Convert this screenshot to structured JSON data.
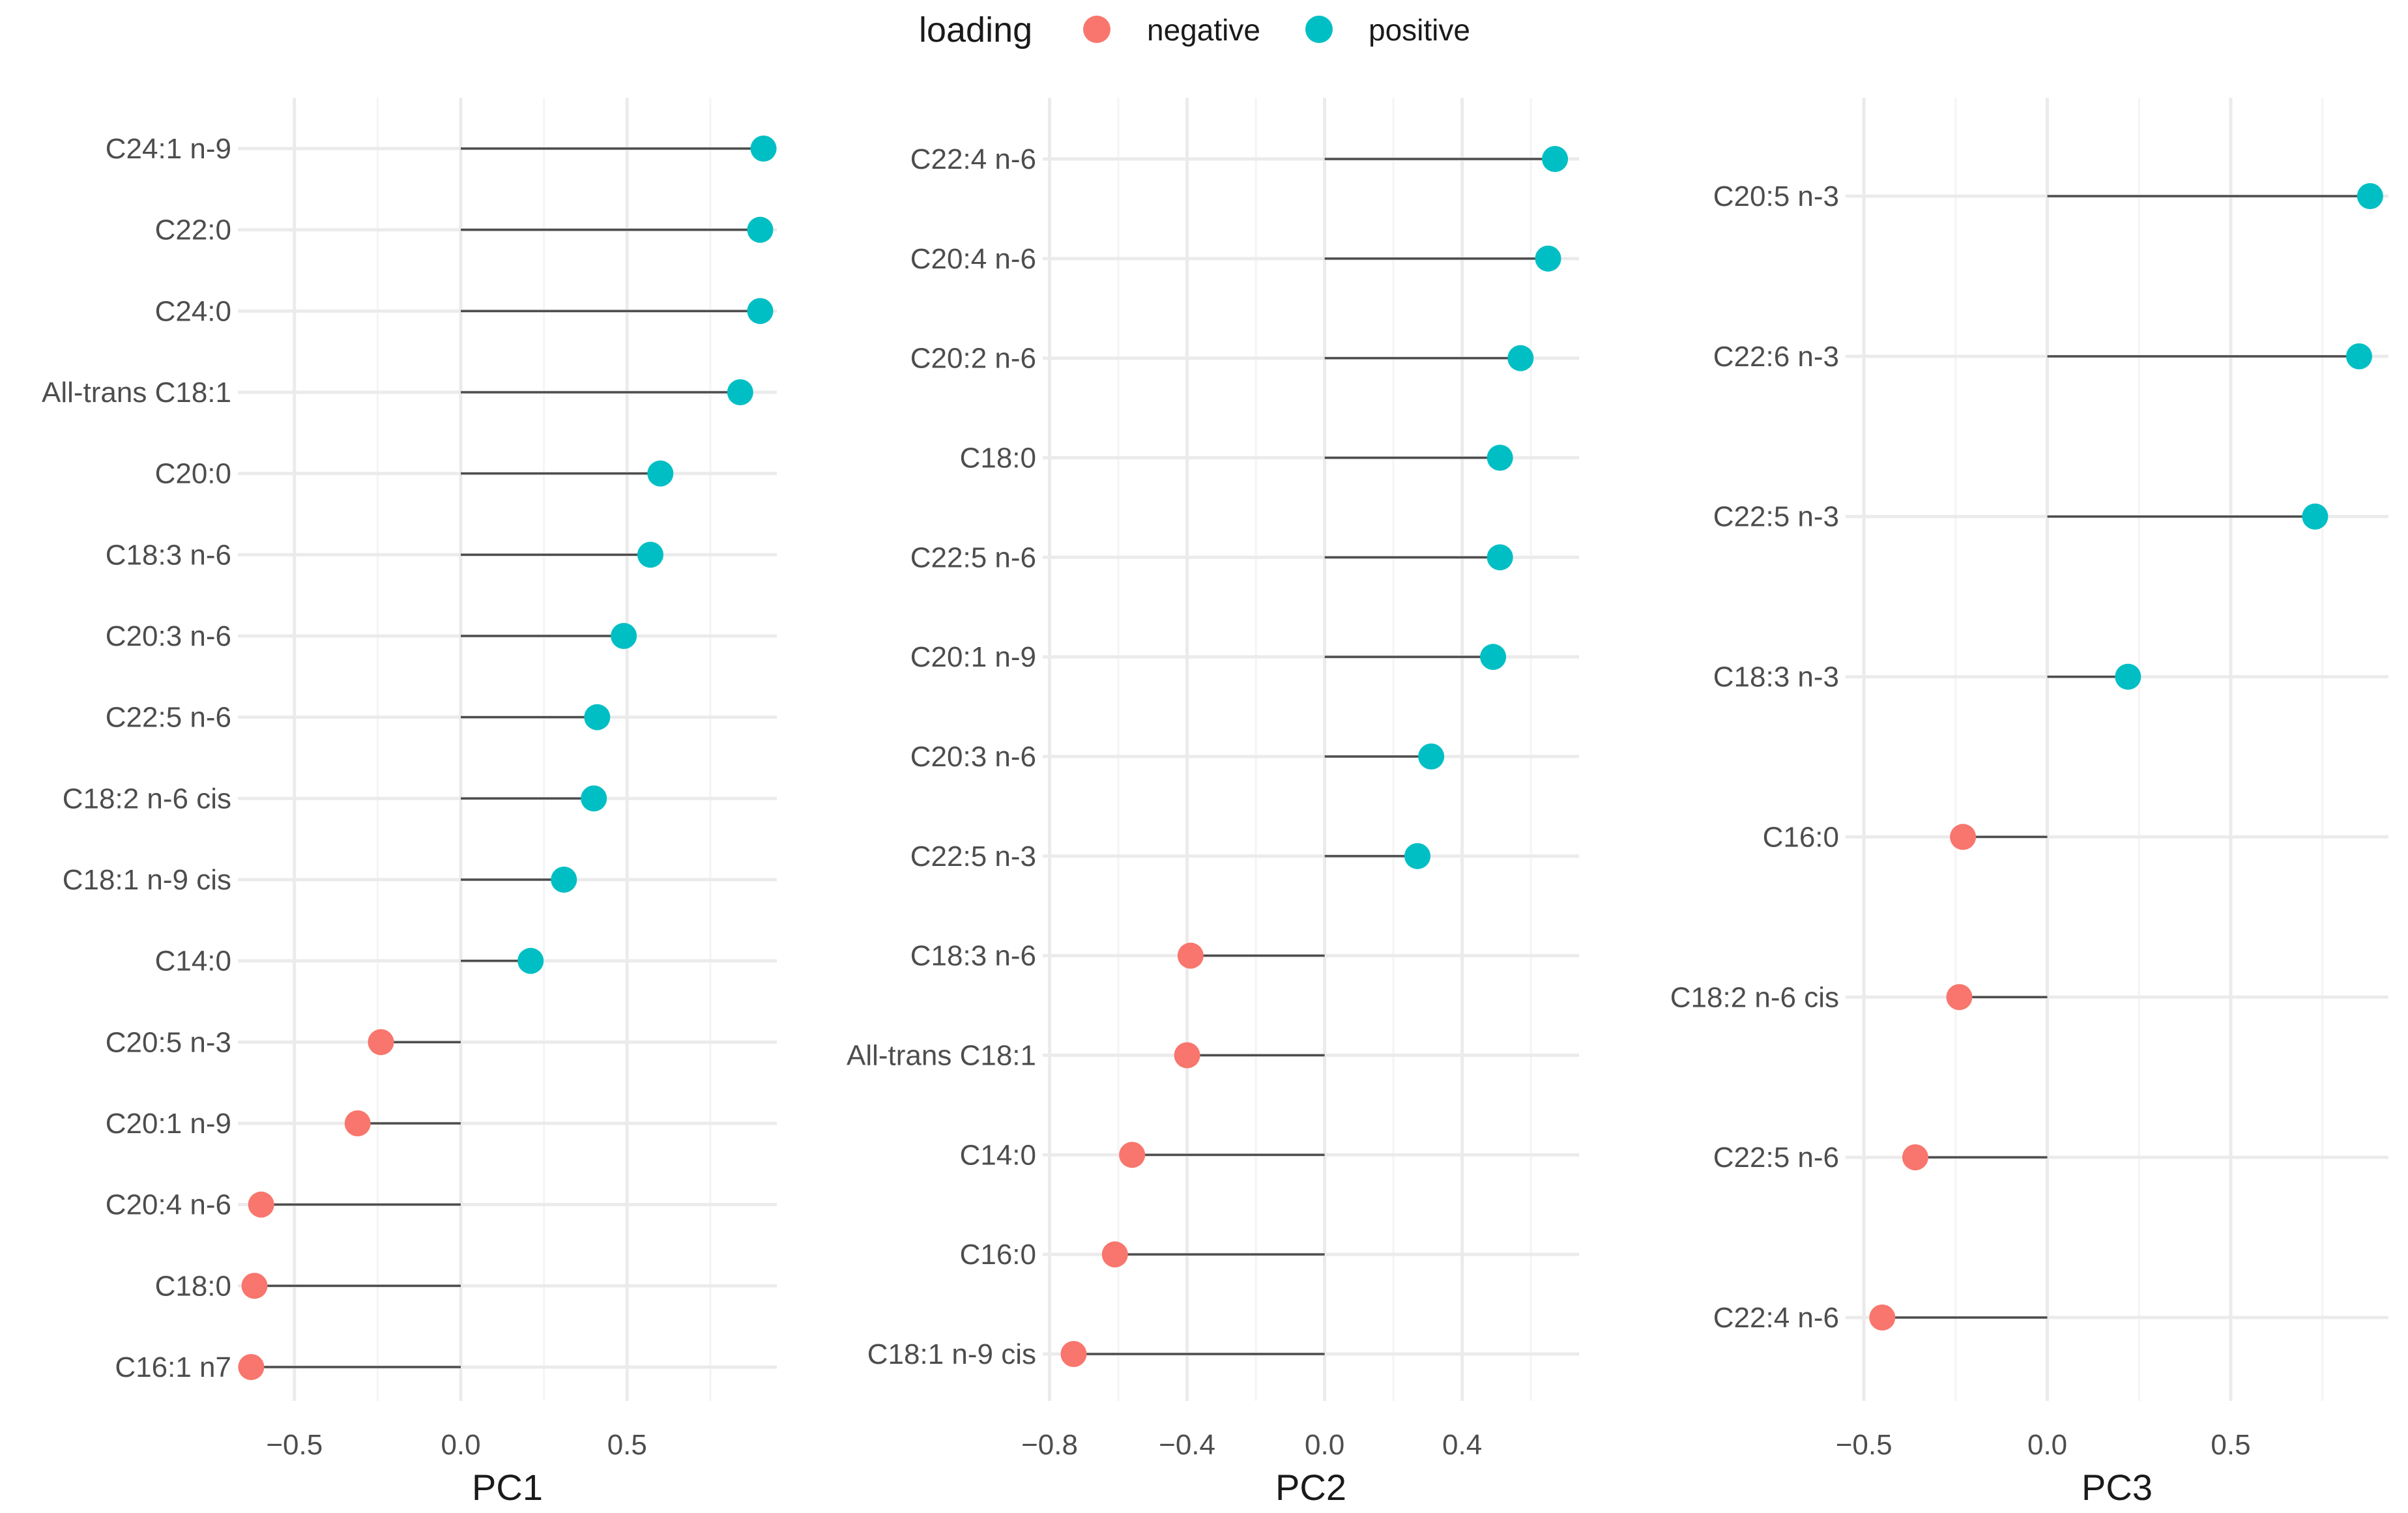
{
  "legend": {
    "title": "loading",
    "items": [
      {
        "label": "negative",
        "color": "#F8766D"
      },
      {
        "label": "positive",
        "color": "#00BFC4"
      }
    ]
  },
  "chart_data": [
    {
      "type": "lollipop",
      "xlabel": "PC1",
      "xlim": [
        -0.67,
        0.95
      ],
      "xticks": [
        -0.5,
        0.0,
        0.5
      ],
      "xtick_labels": [
        "−0.5",
        "0.0",
        "0.5"
      ],
      "categories": [
        "C24:1 n-9",
        "C22:0",
        "C24:0",
        "All-trans C18:1",
        "C20:0",
        "C18:3 n-6",
        "C20:3 n-6",
        "C22:5 n-6",
        "C18:2 n-6 cis",
        "C18:1 n-9 cis",
        "C14:0",
        "C20:5 n-3",
        "C20:1 n-9",
        "C20:4 n-6",
        "C18:0",
        "C16:1 n7"
      ],
      "values": [
        0.91,
        0.9,
        0.9,
        0.84,
        0.6,
        0.57,
        0.49,
        0.41,
        0.4,
        0.31,
        0.21,
        -0.24,
        -0.31,
        -0.6,
        -0.62,
        -0.63
      ]
    },
    {
      "type": "lollipop",
      "xlabel": "PC2",
      "xlim": [
        -0.82,
        0.74
      ],
      "xticks": [
        -0.8,
        -0.4,
        0.0,
        0.4
      ],
      "xtick_labels": [
        "−0.8",
        "−0.4",
        "0.0",
        "0.4"
      ],
      "categories": [
        "C22:4 n-6",
        "C20:4 n-6",
        "C20:2 n-6",
        "C18:0",
        "C22:5 n-6",
        "C20:1 n-9",
        "C20:3 n-6",
        "C22:5 n-3",
        "C18:3 n-6",
        "All-trans C18:1",
        "C14:0",
        "C16:0",
        "C18:1 n-9 cis"
      ],
      "values": [
        0.67,
        0.65,
        0.57,
        0.51,
        0.51,
        0.49,
        0.31,
        0.27,
        -0.39,
        -0.4,
        -0.56,
        -0.61,
        -0.73
      ]
    },
    {
      "type": "lollipop",
      "xlabel": "PC3",
      "xlim": [
        -0.55,
        0.93
      ],
      "xticks": [
        -0.5,
        0.0,
        0.5
      ],
      "xtick_labels": [
        "−0.5",
        "0.0",
        "0.5"
      ],
      "categories": [
        "C20:5 n-3",
        "C22:6 n-3",
        "C22:5 n-3",
        "C18:3 n-3",
        "C16:0",
        "C18:2 n-6 cis",
        "C22:5 n-6",
        "C22:4 n-6"
      ],
      "values": [
        0.88,
        0.85,
        0.73,
        0.22,
        -0.23,
        -0.24,
        -0.36,
        -0.45
      ]
    }
  ]
}
